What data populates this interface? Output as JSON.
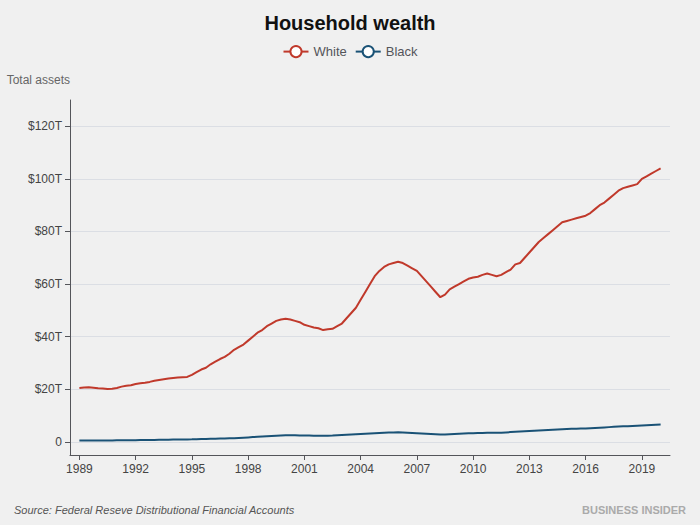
{
  "chart_data": {
    "type": "line",
    "title": "Household wealth",
    "ylabel": "Total assets",
    "annotations": [
      "Source: Federal Reseve Distributional Financial Accounts",
      "BUSINESS INSIDER"
    ],
    "x": [
      1989,
      1989.25,
      1989.5,
      1989.75,
      1990,
      1990.25,
      1990.5,
      1990.75,
      1991,
      1991.25,
      1991.5,
      1991.75,
      1992,
      1992.25,
      1992.5,
      1992.75,
      1993,
      1993.25,
      1993.5,
      1993.75,
      1994,
      1994.25,
      1994.5,
      1994.75,
      1995,
      1995.25,
      1995.5,
      1995.75,
      1996,
      1996.25,
      1996.5,
      1996.75,
      1997,
      1997.25,
      1997.5,
      1997.75,
      1998,
      1998.25,
      1998.5,
      1998.75,
      1999,
      1999.25,
      1999.5,
      1999.75,
      2000,
      2000.25,
      2000.5,
      2000.75,
      2001,
      2001.25,
      2001.5,
      2001.75,
      2002,
      2002.25,
      2002.5,
      2002.75,
      2003,
      2003.25,
      2003.5,
      2003.75,
      2004,
      2004.25,
      2004.5,
      2004.75,
      2005,
      2005.25,
      2005.5,
      2005.75,
      2006,
      2006.25,
      2006.5,
      2006.75,
      2007,
      2007.25,
      2007.5,
      2007.75,
      2008,
      2008.25,
      2008.5,
      2008.75,
      2009,
      2009.25,
      2009.5,
      2009.75,
      2010,
      2010.25,
      2010.5,
      2010.75,
      2011,
      2011.25,
      2011.5,
      2011.75,
      2012,
      2012.25,
      2012.5,
      2012.75,
      2013,
      2013.25,
      2013.5,
      2013.75,
      2014,
      2014.25,
      2014.5,
      2014.75,
      2015,
      2015.25,
      2015.5,
      2015.75,
      2016,
      2016.25,
      2016.5,
      2016.75,
      2017,
      2017.25,
      2017.5,
      2017.75,
      2018,
      2018.25,
      2018.5,
      2018.75,
      2019,
      2019.25,
      2019.5,
      2019.75,
      2020
    ],
    "series": [
      {
        "name": "White",
        "color": "#c0392b",
        "values": [
          20.5,
          20.7,
          20.8,
          20.6,
          20.4,
          20.3,
          20.1,
          20.2,
          20.5,
          21.0,
          21.3,
          21.5,
          22.0,
          22.3,
          22.5,
          22.8,
          23.2,
          23.5,
          23.8,
          24.1,
          24.3,
          24.5,
          24.6,
          24.7,
          25.5,
          26.5,
          27.5,
          28.2,
          29.5,
          30.5,
          31.5,
          32.3,
          33.5,
          35.0,
          36.0,
          37.0,
          38.5,
          40.0,
          41.5,
          42.5,
          44.0,
          45.0,
          46.0,
          46.5,
          46.8,
          46.5,
          46.0,
          45.5,
          44.5,
          44.0,
          43.5,
          43.2,
          42.5,
          42.8,
          43.0,
          44.0,
          45.0,
          47.0,
          49.0,
          51.0,
          54.0,
          57.0,
          60.0,
          63.0,
          65.0,
          66.5,
          67.5,
          68.0,
          68.5,
          68.0,
          67.0,
          66.0,
          65.0,
          63.0,
          61.0,
          59.0,
          57.0,
          55.0,
          56.0,
          58.0,
          59.0,
          60.0,
          61.0,
          62.0,
          62.5,
          62.8,
          63.5,
          64.0,
          63.5,
          63.0,
          63.5,
          64.5,
          65.5,
          67.5,
          68.0,
          70.0,
          72.0,
          74.0,
          76.0,
          77.5,
          79.0,
          80.5,
          82.0,
          83.5,
          84.0,
          84.5,
          85.0,
          85.5,
          86.0,
          87.0,
          88.5,
          90.0,
          91.0,
          92.5,
          94.0,
          95.5,
          96.5,
          97.0,
          97.5,
          98.0,
          100.0,
          101.0,
          102.0,
          103.0,
          104.0
        ]
      },
      {
        "name": "Black",
        "color": "#1a5276",
        "values": [
          0.5,
          0.5,
          0.5,
          0.5,
          0.5,
          0.55,
          0.55,
          0.55,
          0.6,
          0.6,
          0.6,
          0.65,
          0.65,
          0.7,
          0.7,
          0.72,
          0.75,
          0.78,
          0.8,
          0.82,
          0.85,
          0.87,
          0.9,
          0.92,
          0.95,
          1.0,
          1.05,
          1.1,
          1.15,
          1.2,
          1.25,
          1.3,
          1.35,
          1.4,
          1.5,
          1.6,
          1.7,
          1.8,
          1.9,
          2.0,
          2.1,
          2.2,
          2.3,
          2.4,
          2.5,
          2.5,
          2.5,
          2.4,
          2.4,
          2.4,
          2.3,
          2.3,
          2.3,
          2.35,
          2.4,
          2.5,
          2.6,
          2.7,
          2.8,
          2.9,
          3.0,
          3.1,
          3.2,
          3.3,
          3.4,
          3.5,
          3.55,
          3.6,
          3.65,
          3.6,
          3.5,
          3.4,
          3.3,
          3.2,
          3.1,
          3.0,
          2.9,
          2.8,
          2.8,
          2.9,
          3.0,
          3.1,
          3.2,
          3.3,
          3.3,
          3.35,
          3.4,
          3.45,
          3.5,
          3.5,
          3.5,
          3.6,
          3.7,
          3.8,
          3.9,
          4.0,
          4.1,
          4.2,
          4.3,
          4.4,
          4.5,
          4.6,
          4.7,
          4.8,
          4.9,
          5.0,
          5.0,
          5.1,
          5.1,
          5.2,
          5.3,
          5.4,
          5.5,
          5.6,
          5.7,
          5.8,
          5.9,
          5.9,
          6.0,
          6.1,
          6.2,
          6.3,
          6.4,
          6.5,
          6.6
        ]
      }
    ],
    "xlim": [
      1988.5,
      2020.5
    ],
    "xticks": [
      1989,
      1992,
      1995,
      1998,
      2001,
      2004,
      2007,
      2010,
      2013,
      2016,
      2019
    ],
    "ylim": [
      -5,
      130
    ],
    "yticks": [
      0,
      {
        "value": 20,
        "label": "$20T"
      },
      {
        "value": 40,
        "label": "$40T"
      },
      {
        "value": 60,
        "label": "$60T"
      },
      {
        "value": 80,
        "label": "$80T"
      },
      {
        "value": 100,
        "label": "$100T"
      },
      {
        "value": 120,
        "label": "$120T"
      }
    ],
    "grid": true,
    "legend": "top"
  }
}
